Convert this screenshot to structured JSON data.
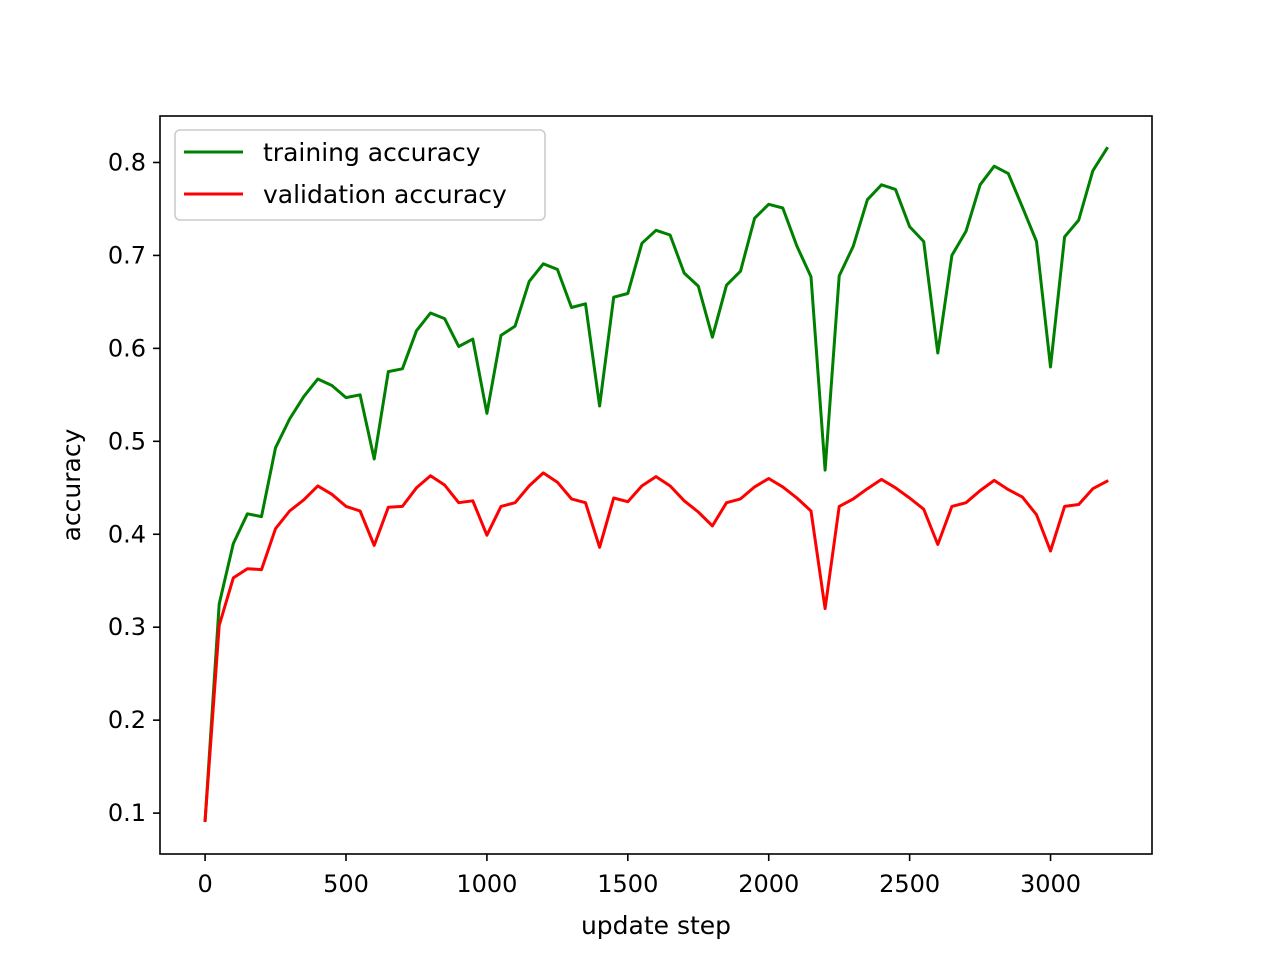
{
  "chart_data": {
    "type": "line",
    "title": "",
    "xlabel": "update step",
    "ylabel": "accuracy",
    "xlim": [
      -160,
      3360
    ],
    "ylim": [
      0.056,
      0.85
    ],
    "xticks": [
      0,
      500,
      1000,
      1500,
      2000,
      2500,
      3000
    ],
    "yticks": [
      0.1,
      0.2,
      0.3,
      0.4,
      0.5,
      0.6,
      0.7,
      0.8
    ],
    "grid": false,
    "legend_position": "top-left",
    "x": [
      0,
      50,
      100,
      150,
      200,
      250,
      300,
      350,
      400,
      450,
      500,
      550,
      600,
      650,
      700,
      750,
      800,
      850,
      900,
      950,
      1000,
      1050,
      1100,
      1150,
      1200,
      1250,
      1300,
      1350,
      1400,
      1450,
      1500,
      1550,
      1600,
      1650,
      1700,
      1750,
      1800,
      1850,
      1900,
      1950,
      2000,
      2050,
      2100,
      2150,
      2200,
      2250,
      2300,
      2350,
      2400,
      2450,
      2500,
      2550,
      2600,
      2650,
      2700,
      2750,
      2800,
      2850,
      2900,
      2950,
      3000,
      3050,
      3100,
      3150,
      3200
    ],
    "series": [
      {
        "name": "training accuracy",
        "color": "#008000",
        "values": [
          0.092,
          0.325,
          0.39,
          0.422,
          0.419,
          0.493,
          0.524,
          0.548,
          0.567,
          0.56,
          0.547,
          0.55,
          0.481,
          0.575,
          0.578,
          0.619,
          0.638,
          0.632,
          0.602,
          0.61,
          0.53,
          0.614,
          0.624,
          0.672,
          0.691,
          0.685,
          0.644,
          0.648,
          0.538,
          0.655,
          0.659,
          0.713,
          0.727,
          0.722,
          0.681,
          0.667,
          0.612,
          0.668,
          0.683,
          0.74,
          0.755,
          0.751,
          0.71,
          0.677,
          0.469,
          0.678,
          0.71,
          0.76,
          0.776,
          0.771,
          0.731,
          0.715,
          0.595,
          0.7,
          0.726,
          0.776,
          0.796,
          0.788,
          0.752,
          0.715,
          0.58,
          0.72,
          0.738,
          0.791,
          0.815
        ]
      },
      {
        "name": "validation accuracy",
        "color": "#ff0000",
        "values": [
          0.092,
          0.302,
          0.353,
          0.363,
          0.362,
          0.406,
          0.425,
          0.437,
          0.452,
          0.443,
          0.43,
          0.425,
          0.388,
          0.429,
          0.43,
          0.45,
          0.463,
          0.453,
          0.434,
          0.436,
          0.399,
          0.43,
          0.434,
          0.452,
          0.466,
          0.456,
          0.438,
          0.434,
          0.386,
          0.439,
          0.435,
          0.452,
          0.462,
          0.452,
          0.436,
          0.424,
          0.409,
          0.434,
          0.438,
          0.451,
          0.46,
          0.451,
          0.439,
          0.425,
          0.32,
          0.43,
          0.438,
          0.449,
          0.459,
          0.45,
          0.439,
          0.427,
          0.389,
          0.43,
          0.434,
          0.447,
          0.458,
          0.448,
          0.44,
          0.421,
          0.382,
          0.43,
          0.432,
          0.449,
          0.457
        ]
      }
    ]
  }
}
